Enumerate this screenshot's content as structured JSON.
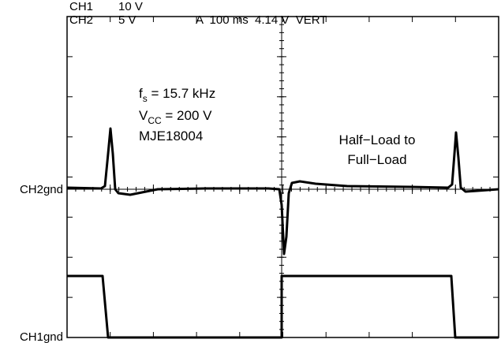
{
  "header": {
    "ch1": {
      "name": "CH1",
      "scale": "10 V"
    },
    "ch2": {
      "name": "CH2",
      "scale": "5 V"
    },
    "trigger": "A  100 ms  4.14 V  VERT"
  },
  "annotations": {
    "fs": {
      "symbol": "f",
      "subscript": "s",
      "text": " = 15.7 kHz"
    },
    "vcc": {
      "symbol": "V",
      "subscript": "CC",
      "text": " = 200 V"
    },
    "device": "MJE18004",
    "load": [
      "Half−Load to",
      "Full−Load"
    ]
  },
  "markers": {
    "ch2": "CH2gnd",
    "ch1": "CH1gnd"
  }
}
